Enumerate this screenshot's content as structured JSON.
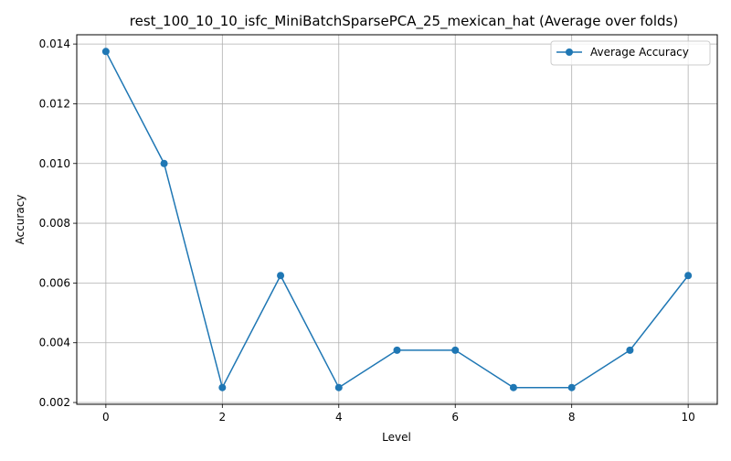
{
  "chart_data": {
    "type": "line",
    "title": "rest_100_10_10_isfc_MiniBatchSparsePCA_25_mexican_hat (Average over folds)",
    "xlabel": "Level",
    "ylabel": "Accuracy",
    "x": [
      0,
      1,
      2,
      3,
      4,
      5,
      6,
      7,
      8,
      9,
      10
    ],
    "series": [
      {
        "name": "Average Accuracy",
        "color": "#1f77b4",
        "marker": "circle",
        "values": [
          0.01375,
          0.01,
          0.0025,
          0.00625,
          0.0025,
          0.00375,
          0.00375,
          0.0025,
          0.0025,
          0.00375,
          0.00625
        ]
      }
    ],
    "xlim": [
      -0.5,
      10.5
    ],
    "ylim": [
      0.00194,
      0.01431
    ],
    "xticks": [
      "0",
      "2",
      "4",
      "6",
      "8",
      "10"
    ],
    "yticks": [
      "0.002",
      "0.004",
      "0.006",
      "0.008",
      "0.010",
      "0.012",
      "0.014"
    ],
    "grid": true,
    "legend_position": "top-right"
  }
}
